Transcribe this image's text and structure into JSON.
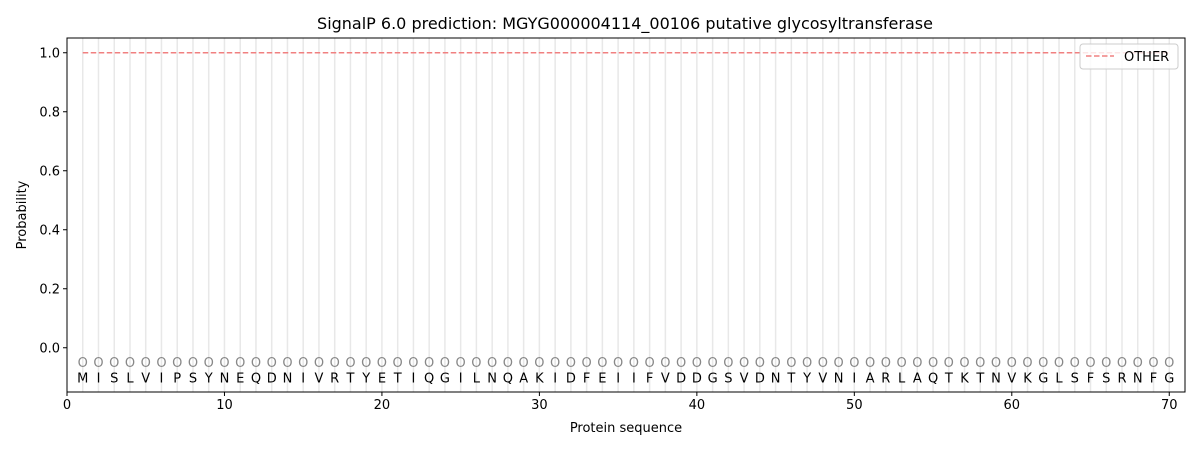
{
  "chart_data": {
    "type": "line",
    "title": "SignalP 6.0 prediction: MGYG000004114_00106 putative glycosyltransferase",
    "xlabel": "Protein sequence",
    "ylabel": "Probability",
    "xlim": [
      0,
      71
    ],
    "ylim": [
      -0.15,
      1.05
    ],
    "xticks": [
      0,
      10,
      20,
      30,
      40,
      50,
      60,
      70
    ],
    "yticks": [
      "0.0",
      "0.2",
      "0.4",
      "0.6",
      "0.8",
      "1.0"
    ],
    "grid": "vertical lines at each residue",
    "legend_placement": "top-right",
    "sequence": [
      "M",
      "I",
      "S",
      "L",
      "V",
      "I",
      "P",
      "S",
      "Y",
      "N",
      "E",
      "Q",
      "D",
      "N",
      "I",
      "V",
      "R",
      "T",
      "Y",
      "E",
      "T",
      "I",
      "Q",
      "G",
      "I",
      "L",
      "N",
      "Q",
      "A",
      "K",
      "I",
      "D",
      "F",
      "E",
      "I",
      "I",
      "F",
      "V",
      "D",
      "D",
      "G",
      "S",
      "V",
      "D",
      "N",
      "T",
      "Y",
      "V",
      "N",
      "I",
      "A",
      "R",
      "L",
      "A",
      "Q",
      "T",
      "K",
      "T",
      "N",
      "V",
      "K",
      "G",
      "L",
      "S",
      "F",
      "S",
      "R",
      "N",
      "F",
      "G"
    ],
    "predicted_labels": "OOOOOOOOOOOOOOOOOOOOOOOOOOOOOOOOOOOOOOOOOOOOOOOOOOOOOOOOOOOOOOOOOOOOOO",
    "series": [
      {
        "name": "OTHER",
        "color": "#f08080",
        "style": "dashed",
        "x_range": [
          1,
          70
        ],
        "value": 1.0
      }
    ]
  }
}
